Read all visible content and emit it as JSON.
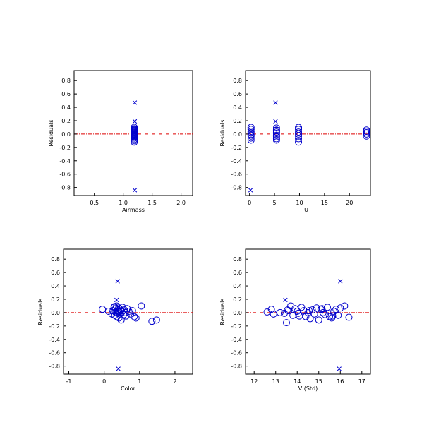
{
  "chart_data": [
    {
      "type": "scatter",
      "xlabel": "Airmass",
      "ylabel": "Residuals",
      "xlim": [
        0.15,
        2.2
      ],
      "ylim": [
        -0.92,
        0.95
      ],
      "xticks": [
        0.5,
        1.0,
        1.5,
        2.0
      ],
      "xtick_labels": [
        "0.5",
        "1.0",
        "1.5",
        "2.0"
      ],
      "yticks": [
        0.8,
        0.6,
        0.4,
        0.2,
        0.0,
        -0.2,
        -0.4,
        -0.6,
        -0.8
      ],
      "ytick_labels": [
        "0.8",
        "0.6",
        "0.4",
        "0.2",
        "0.0",
        "-0.2",
        "-0.4",
        "-0.6",
        "-0.8"
      ],
      "reference_line": 0.0,
      "series": [
        {
          "marker": "circle",
          "color": "#0000cc",
          "x": [
            1.19,
            1.19,
            1.19,
            1.19,
            1.19,
            1.19,
            1.19,
            1.19,
            1.19,
            1.19,
            1.19,
            1.19,
            1.19,
            1.19,
            1.19,
            1.19,
            1.19,
            1.19
          ],
          "y": [
            0.1,
            0.08,
            0.06,
            0.05,
            0.04,
            0.03,
            0.02,
            0.01,
            0.0,
            -0.01,
            -0.02,
            -0.03,
            -0.04,
            -0.06,
            -0.08,
            -0.1,
            -0.12,
            0.07
          ]
        },
        {
          "marker": "x",
          "color": "#0000cc",
          "x": [
            1.2,
            1.2,
            1.2
          ],
          "y": [
            0.47,
            0.19,
            -0.84
          ]
        }
      ]
    },
    {
      "type": "scatter",
      "xlabel": "UT",
      "ylabel": "Residuals",
      "xlim": [
        -0.8,
        24.2
      ],
      "ylim": [
        -0.92,
        0.95
      ],
      "xticks": [
        0,
        5,
        10,
        15,
        20
      ],
      "xtick_labels": [
        "0",
        "5",
        "10",
        "15",
        "20"
      ],
      "yticks": [
        0.8,
        0.6,
        0.4,
        0.2,
        0.0,
        -0.2,
        -0.4,
        -0.6,
        -0.8
      ],
      "ytick_labels": [
        "0.8",
        "0.6",
        "0.4",
        "0.2",
        "0.0",
        "-0.2",
        "-0.4",
        "-0.6",
        "-0.8"
      ],
      "reference_line": 0.0,
      "series": [
        {
          "marker": "circle",
          "color": "#0000cc",
          "x": [
            0.3,
            0.3,
            0.3,
            0.3,
            0.3,
            0.3,
            0.3,
            0.3,
            5.4,
            5.4,
            5.4,
            5.4,
            5.4,
            5.4,
            5.4,
            5.4,
            5.4,
            9.8,
            9.8,
            9.8,
            9.8,
            9.8,
            9.8,
            9.8,
            23.4,
            23.4,
            23.4,
            23.4,
            23.4
          ],
          "y": [
            0.1,
            0.07,
            0.04,
            0.02,
            -0.01,
            -0.03,
            -0.06,
            -0.09,
            0.09,
            0.06,
            0.05,
            0.03,
            0.01,
            -0.02,
            -0.04,
            -0.07,
            -0.09,
            0.1,
            0.07,
            0.03,
            0.0,
            -0.03,
            -0.07,
            -0.12,
            0.06,
            0.04,
            0.02,
            0.0,
            -0.03
          ]
        },
        {
          "marker": "x",
          "color": "#0000cc",
          "x": [
            5.2,
            5.2,
            0.2
          ],
          "y": [
            0.47,
            0.19,
            -0.84
          ]
        }
      ]
    },
    {
      "type": "scatter",
      "xlabel": "Color",
      "ylabel": "Residuals",
      "xlim": [
        -1.15,
        2.5
      ],
      "ylim": [
        -0.92,
        0.95
      ],
      "xticks": [
        -1,
        0,
        1,
        2
      ],
      "xtick_labels": [
        "-1",
        "0",
        "1",
        "2"
      ],
      "yticks": [
        0.8,
        0.6,
        0.4,
        0.2,
        0.0,
        -0.2,
        -0.4,
        -0.6,
        -0.8
      ],
      "ytick_labels": [
        "0.8",
        "0.6",
        "0.4",
        "0.2",
        "0.0",
        "-0.2",
        "-0.4",
        "-0.6",
        "-0.8"
      ],
      "reference_line": 0.0,
      "series": [
        {
          "marker": "circle",
          "color": "#0000cc",
          "x": [
            -0.05,
            0.12,
            0.22,
            0.25,
            0.28,
            0.3,
            0.32,
            0.33,
            0.35,
            0.36,
            0.38,
            0.4,
            0.41,
            0.42,
            0.44,
            0.45,
            0.47,
            0.48,
            0.5,
            0.52,
            0.55,
            0.57,
            0.6,
            0.62,
            0.65,
            0.7,
            0.75,
            0.8,
            0.85,
            0.9,
            1.05,
            1.35,
            1.48,
            0.38,
            0.43,
            0.29
          ],
          "y": [
            0.05,
            0.02,
            -0.02,
            0.03,
            0.08,
            -0.04,
            0.06,
            0.0,
            0.1,
            -0.06,
            0.04,
            0.02,
            0.07,
            -0.08,
            -0.02,
            0.05,
            0.03,
            -0.11,
            0.01,
            0.08,
            -0.03,
            0.04,
            0.0,
            -0.05,
            0.06,
            0.02,
            -0.02,
            0.03,
            -0.06,
            -0.08,
            0.1,
            -0.13,
            -0.11,
            -0.01,
            0.01,
            0.09
          ]
        },
        {
          "marker": "x",
          "color": "#0000cc",
          "x": [
            0.38,
            0.35,
            0.4
          ],
          "y": [
            0.47,
            0.19,
            -0.84
          ]
        }
      ]
    },
    {
      "type": "scatter",
      "xlabel": "V (Std)",
      "ylabel": "Residuals",
      "xlim": [
        11.6,
        17.4
      ],
      "ylim": [
        -0.92,
        0.95
      ],
      "xticks": [
        12,
        13,
        14,
        15,
        16,
        17
      ],
      "xtick_labels": [
        "12",
        "13",
        "14",
        "15",
        "16",
        "17"
      ],
      "yticks": [
        0.8,
        0.6,
        0.4,
        0.2,
        0.0,
        -0.2,
        -0.4,
        -0.6,
        -0.8
      ],
      "ytick_labels": [
        "0.8",
        "0.6",
        "0.4",
        "0.2",
        "0.0",
        "-0.2",
        "-0.4",
        "-0.6",
        "-0.8"
      ],
      "reference_line": 0.0,
      "series": [
        {
          "marker": "circle",
          "color": "#0000cc",
          "x": [
            12.6,
            12.8,
            12.9,
            13.2,
            13.4,
            13.5,
            13.6,
            13.7,
            13.8,
            13.9,
            14.0,
            14.1,
            14.2,
            14.3,
            14.4,
            14.5,
            14.6,
            14.7,
            14.8,
            14.9,
            15.0,
            15.1,
            15.2,
            15.3,
            15.4,
            15.5,
            15.6,
            15.7,
            15.8,
            15.9,
            16.0,
            16.2,
            16.4,
            13.55,
            14.05,
            14.55,
            15.15,
            15.65
          ],
          "y": [
            0.01,
            0.05,
            -0.02,
            0.0,
            -0.01,
            -0.15,
            0.03,
            0.1,
            -0.04,
            0.06,
            0.02,
            -0.05,
            0.08,
            0.03,
            -0.06,
            0.0,
            -0.09,
            0.04,
            -0.02,
            0.07,
            -0.11,
            0.05,
            0.0,
            -0.03,
            0.08,
            -0.06,
            -0.08,
            0.02,
            0.05,
            -0.04,
            0.07,
            0.1,
            -0.07,
            0.04,
            -0.01,
            0.03,
            0.06,
            -0.05
          ]
        },
        {
          "marker": "x",
          "color": "#0000cc",
          "x": [
            16.0,
            13.45,
            15.95
          ],
          "y": [
            0.47,
            0.19,
            -0.84
          ]
        }
      ]
    }
  ]
}
